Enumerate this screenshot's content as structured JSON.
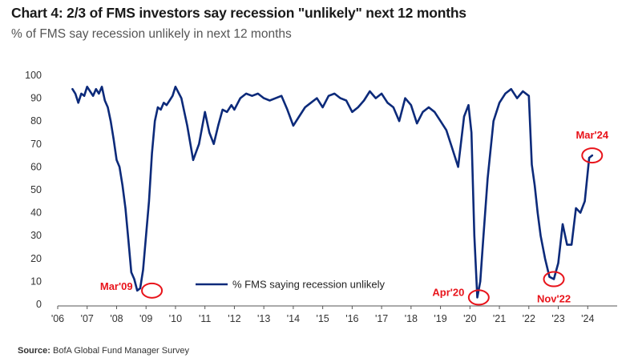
{
  "header": {
    "title": "Chart 4: 2/3 of FMS investors say recession \"unlikely\" next 12 months",
    "subtitle": "% of FMS say recession unlikely in next 12 months"
  },
  "source": {
    "label": "Source:",
    "text": "BofA Global Fund Manager Survey"
  },
  "colors": {
    "line": "#0c2a7a",
    "annotation": "#e8141b"
  },
  "chart_data": {
    "type": "line",
    "title": "Chart 4: 2/3 of FMS investors say recession \"unlikely\" next 12 months",
    "subtitle": "% of FMS say recession unlikely in next 12 months",
    "xlabel": "",
    "ylabel": "",
    "ylim": [
      0,
      100
    ],
    "yticks": [
      0,
      10,
      20,
      30,
      40,
      50,
      60,
      70,
      80,
      90,
      100
    ],
    "xlim": [
      2006.0,
      2025.0
    ],
    "xtick_labels": [
      "'06",
      "'07",
      "'08",
      "'09",
      "'10",
      "'11",
      "'12",
      "'13",
      "'14",
      "'15",
      "'16",
      "'17",
      "'18",
      "'19",
      "'20",
      "'21",
      "'22",
      "'23",
      "'24"
    ],
    "legend": {
      "position": "bottom-center",
      "entries": [
        "% FMS saying recession unlikely"
      ]
    },
    "grid": false,
    "series": [
      {
        "name": "% FMS saying recession unlikely",
        "x": [
          2006.5,
          2006.6,
          2006.7,
          2006.8,
          2006.9,
          2007.0,
          2007.1,
          2007.2,
          2007.3,
          2007.4,
          2007.5,
          2007.6,
          2007.7,
          2007.8,
          2007.9,
          2008.0,
          2008.1,
          2008.2,
          2008.3,
          2008.4,
          2008.5,
          2008.6,
          2008.7,
          2008.8,
          2008.9,
          2009.0,
          2009.1,
          2009.2,
          2009.3,
          2009.4,
          2009.5,
          2009.6,
          2009.7,
          2009.8,
          2009.9,
          2010.0,
          2010.2,
          2010.4,
          2010.6,
          2010.8,
          2011.0,
          2011.15,
          2011.3,
          2011.45,
          2011.6,
          2011.75,
          2011.9,
          2012.0,
          2012.2,
          2012.4,
          2012.6,
          2012.8,
          2013.0,
          2013.2,
          2013.4,
          2013.6,
          2013.8,
          2014.0,
          2014.2,
          2014.4,
          2014.6,
          2014.8,
          2015.0,
          2015.2,
          2015.4,
          2015.6,
          2015.8,
          2016.0,
          2016.2,
          2016.4,
          2016.6,
          2016.8,
          2017.0,
          2017.2,
          2017.4,
          2017.6,
          2017.8,
          2018.0,
          2018.2,
          2018.4,
          2018.6,
          2018.8,
          2019.0,
          2019.2,
          2019.4,
          2019.6,
          2019.8,
          2019.95,
          2020.05,
          2020.15,
          2020.25,
          2020.35,
          2020.45,
          2020.6,
          2020.8,
          2021.0,
          2021.2,
          2021.4,
          2021.6,
          2021.8,
          2022.0,
          2022.1,
          2022.2,
          2022.3,
          2022.4,
          2022.55,
          2022.7,
          2022.85,
          2023.0,
          2023.15,
          2023.3,
          2023.45,
          2023.6,
          2023.75,
          2023.9,
          2024.05,
          2024.15
        ],
        "values": [
          94,
          92,
          88,
          92,
          91,
          95,
          93,
          91,
          94,
          92,
          95,
          89,
          86,
          80,
          72,
          63,
          60,
          52,
          42,
          28,
          14,
          11,
          6,
          7,
          15,
          30,
          45,
          66,
          80,
          86,
          85,
          88,
          87,
          89,
          91,
          95,
          90,
          78,
          63,
          70,
          84,
          75,
          70,
          78,
          85,
          84,
          87,
          85,
          90,
          92,
          91,
          92,
          90,
          89,
          90,
          91,
          85,
          78,
          82,
          86,
          88,
          90,
          86,
          91,
          92,
          90,
          89,
          84,
          86,
          89,
          93,
          90,
          92,
          88,
          86,
          80,
          90,
          87,
          79,
          84,
          86,
          84,
          80,
          76,
          68,
          60,
          82,
          87,
          75,
          30,
          3,
          10,
          28,
          55,
          80,
          88,
          92,
          94,
          90,
          93,
          91,
          61,
          52,
          40,
          30,
          20,
          12,
          11,
          18,
          35,
          26,
          26,
          42,
          40,
          45,
          64,
          65
        ]
      }
    ],
    "annotations": [
      {
        "label": "Mar'09",
        "x": 2009.2,
        "value": 6
      },
      {
        "label": "Apr'20",
        "x": 2020.3,
        "value": 3
      },
      {
        "label": "Nov'22",
        "x": 2022.85,
        "value": 11
      },
      {
        "label": "Mar'24",
        "x": 2024.15,
        "value": 65
      }
    ]
  }
}
